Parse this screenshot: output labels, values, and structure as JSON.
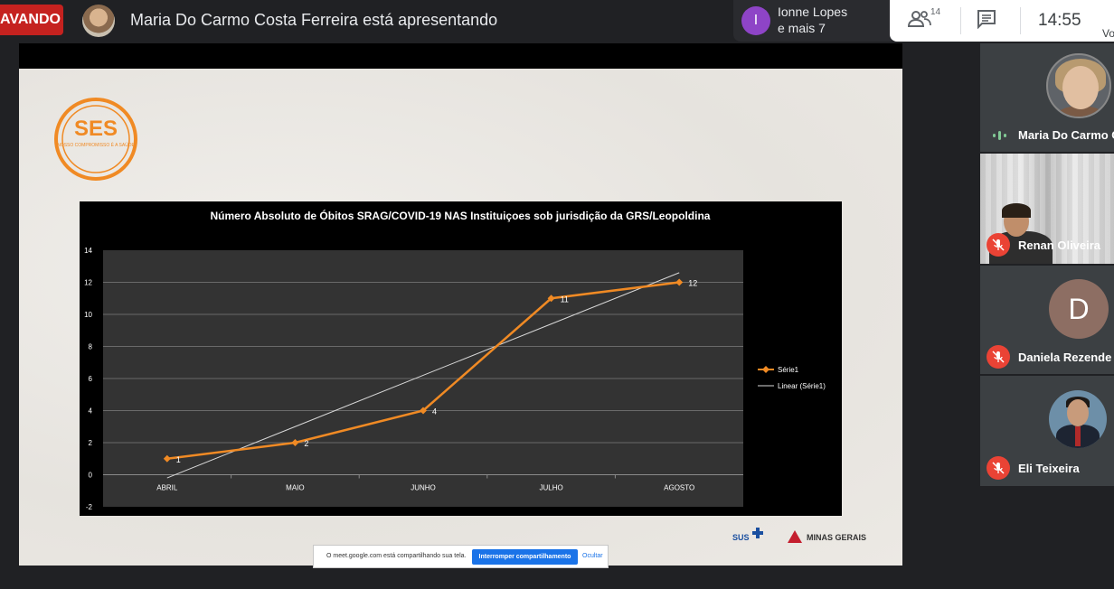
{
  "top_bar": {
    "recording_label": "AVANDO",
    "presenter_text": "Maria Do Carmo Costa Ferreira está apresentando",
    "viewers": {
      "initial": "I",
      "name": "Ionne Lopes",
      "more": "e mais 7"
    },
    "people_count": "14",
    "clock": "14:55",
    "corner_text": "Vo"
  },
  "slide": {
    "logo_text": "SES",
    "logo_subtext": "NOSSO COMPROMISSO É A SAÚDE",
    "footer_sus": "SUS",
    "footer_minas": "MINAS GERAIS"
  },
  "chart_data": {
    "type": "line",
    "title": "Número Absoluto de Óbitos SRAG/COVID-19 NAS Instituiçoes sob jurisdição da GRS/Leopoldina",
    "categories": [
      "ABRIL",
      "MAIO",
      "JUNHO",
      "JULHO",
      "AGOSTO"
    ],
    "series": [
      {
        "name": "Série1",
        "values": [
          1,
          2,
          4,
          11,
          12
        ],
        "color": "#f08a24"
      }
    ],
    "trendline": {
      "name": "Linear (Série1)",
      "values": [
        -0.2,
        3.0,
        6.2,
        9.4,
        12.6
      ],
      "color": "#d8d8d8"
    },
    "data_labels": [
      "1",
      "2",
      "4",
      "11",
      "12"
    ],
    "y_ticks": [
      "14",
      "12",
      "10",
      "8",
      "6",
      "4",
      "2",
      "0",
      "-2"
    ],
    "ylim": [
      -2,
      14
    ],
    "grid": true,
    "legend_position": "right"
  },
  "share_bar": {
    "message": "O meet.google.com está compartilhando sua tela.",
    "stop_label": "Interromper compartilhamento",
    "hide_label": "Ocultar"
  },
  "participants": [
    {
      "name": "Maria Do Carmo C",
      "status": "speaking"
    },
    {
      "name": "Renan Oliveira",
      "status": "muted"
    },
    {
      "name": "Daniela Rezende",
      "status": "muted",
      "initial": "D"
    },
    {
      "name": "Eli Teixeira",
      "status": "muted"
    }
  ],
  "colors": {
    "meet_dark": "#202124",
    "recording_red": "#c5221f",
    "mute_red": "#ea4335",
    "series_orange": "#f08a24",
    "stop_share_blue": "#1a73e8"
  }
}
